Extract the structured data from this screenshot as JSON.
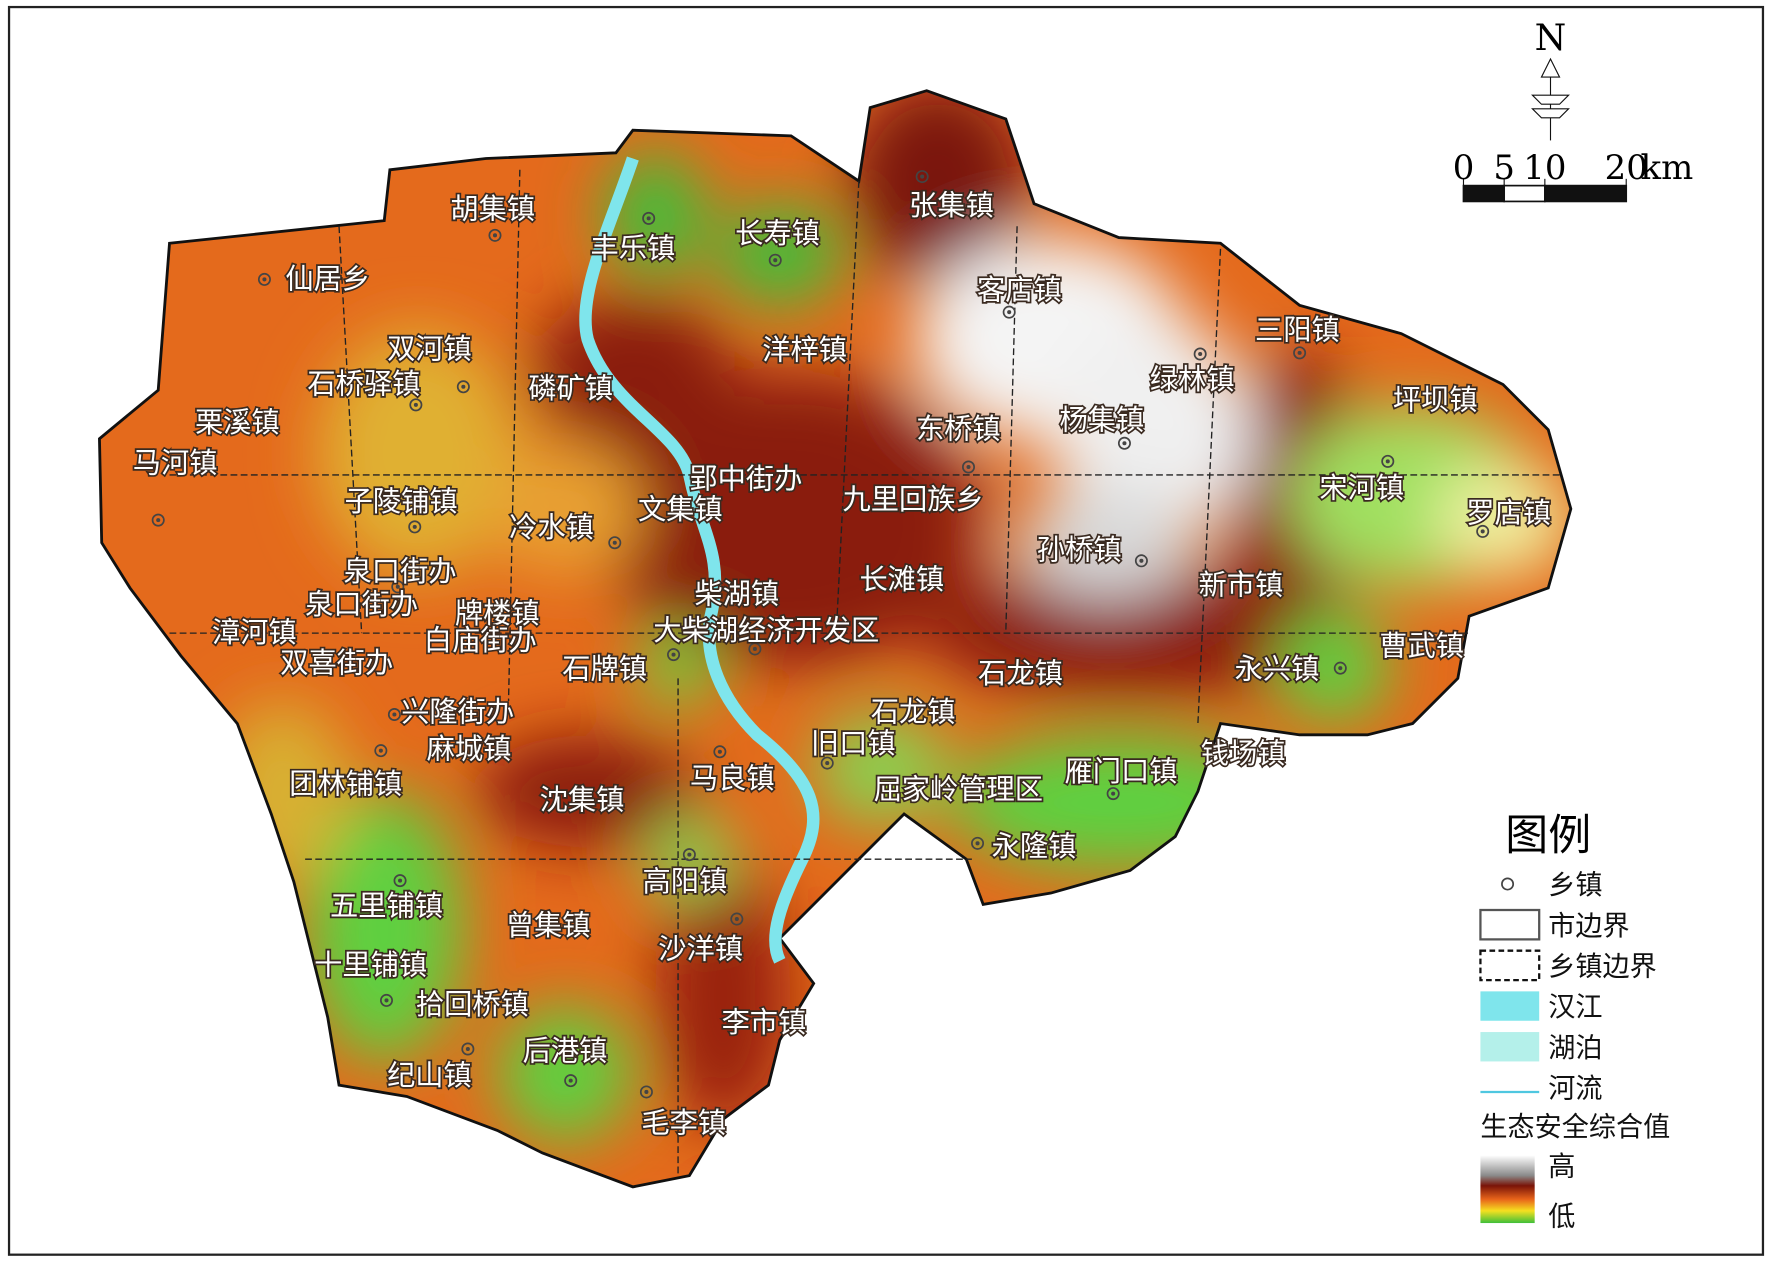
{
  "north": "N",
  "scale_bar": {
    "ticks": [
      0,
      5,
      10,
      20
    ],
    "unit": "km"
  },
  "towns": [
    "胡集镇",
    "丰乐镇",
    "长寿镇",
    "张集镇",
    "仙居乡",
    "客店镇",
    "三阳镇",
    "双河镇",
    "石桥驿镇",
    "磷矿镇",
    "洋梓镇",
    "绿林镇",
    "坪坝镇",
    "栗溪镇",
    "杨集镇",
    "东桥镇",
    "马河镇",
    "郢中街办",
    "宋河镇",
    "九里回族乡",
    "罗店镇",
    "子陵铺镇",
    "文集镇",
    "冷水镇",
    "孙桥镇",
    "泉口街办",
    "长滩镇",
    "新市镇",
    "柴湖镇",
    "泉口街办",
    "牌楼镇",
    "漳河镇",
    "大柴湖经济开发区",
    "白庙街办",
    "曹武镇",
    "双喜街办",
    "石牌镇",
    "永兴镇",
    "石龙镇",
    "兴隆街办",
    "石龙镇",
    "旧口镇",
    "麻城镇",
    "钱场镇",
    "马良镇",
    "雁门口镇",
    "团林铺镇",
    "沈集镇",
    "屈家岭管理区",
    "永隆镇",
    "高阳镇",
    "五里铺镇",
    "曾集镇",
    "沙洋镇",
    "十里铺镇",
    "拾回桥镇",
    "李市镇",
    "后港镇",
    "纪山镇",
    "毛李镇"
  ],
  "legend": {
    "title": "图例",
    "items": [
      "乡镇",
      "市边界",
      "乡镇边界",
      "汉江",
      "湖泊",
      "河流"
    ],
    "value_title": "生态安全综合值",
    "high": "高",
    "low": "低"
  }
}
